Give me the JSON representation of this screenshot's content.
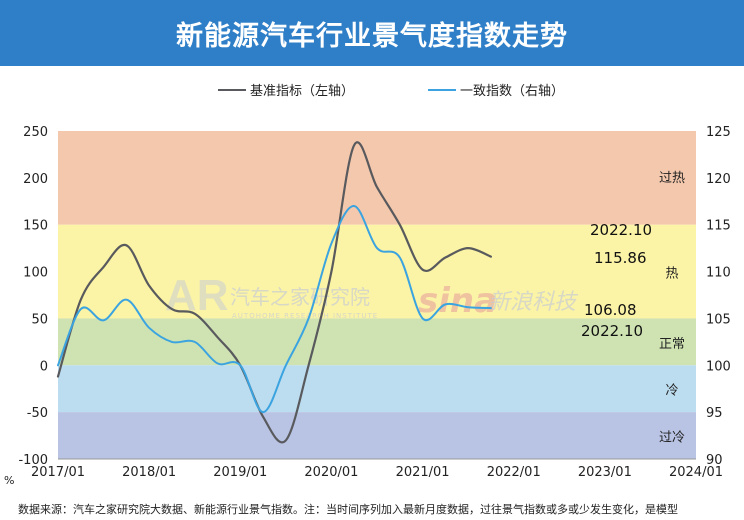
{
  "header": {
    "title": "新能源汽车行业景气度指数走势"
  },
  "footer": {
    "source": "数据来源：汽车之家研究院大数据、新能源行业景气指数。注：当时间序列加入最新月度数据，过往景气指数或多或少发生变化，是模型"
  },
  "watermarks": {
    "autohome_logo": "AR",
    "autohome_text": "汽车之家研究院",
    "autohome_sub": "AUTOHOME RESEARCH INSTITUTE",
    "sina_logo": "sina",
    "sina_text": "新浪科技"
  },
  "colors": {
    "benchmark": "#595a5e",
    "coincident": "#3ba4e0",
    "zone_overheat": "#f4c8ac",
    "zone_hot": "#fbf3a6",
    "zone_normal": "#cfe3b2",
    "zone_cold": "#bcdcef",
    "zone_supercold": "#b9c4e4"
  },
  "chart_data": {
    "type": "line",
    "x_ticks": [
      "2017/01",
      "2018/01",
      "2019/01",
      "2020/01",
      "2021/01",
      "2022/01",
      "2023/01",
      "2024/01"
    ],
    "x_unit_label": "%",
    "y_left": {
      "ylim": [
        -100,
        250
      ],
      "ticks": [
        -100,
        -50,
        0,
        50,
        100,
        150,
        200,
        250
      ]
    },
    "y_right": {
      "ylim": [
        90,
        125
      ],
      "ticks": [
        90,
        95,
        100,
        105,
        110,
        115,
        120,
        125
      ]
    },
    "legend": {
      "placement": "top-center"
    },
    "zones": [
      {
        "label": "过热",
        "from": 150,
        "to": 250,
        "color": "#f4c8ac"
      },
      {
        "label": "热",
        "from": 50,
        "to": 150,
        "color": "#fbf3a6"
      },
      {
        "label": "正常",
        "from": 0,
        "to": 50,
        "color": "#cfe3b2"
      },
      {
        "label": "冷",
        "from": -50,
        "to": 0,
        "color": "#bcdcef"
      },
      {
        "label": "过冷",
        "from": -100,
        "to": -50,
        "color": "#b9c4e4"
      }
    ],
    "series": [
      {
        "name": "基准指标（左轴）",
        "axis": "left",
        "x": [
          "2017-01",
          "2017-04",
          "2017-07",
          "2017-10",
          "2018-01",
          "2018-04",
          "2018-07",
          "2018-10",
          "2019-01",
          "2019-04",
          "2019-07",
          "2019-10",
          "2020-01",
          "2020-04",
          "2020-07",
          "2020-10",
          "2021-01",
          "2021-04",
          "2021-07",
          "2021-10",
          "2022-01",
          "2022-04",
          "2022-07",
          "2022-10"
        ],
        "values": [
          -12,
          70,
          105,
          128,
          85,
          60,
          55,
          30,
          0,
          -55,
          -80,
          0,
          100,
          235,
          190,
          150,
          102,
          115,
          125,
          116,
          116,
          116,
          116,
          116
        ]
      },
      {
        "name": "一致指数（右轴）",
        "axis": "right",
        "x": [
          "2017-01",
          "2017-04",
          "2017-07",
          "2017-10",
          "2018-01",
          "2018-04",
          "2018-07",
          "2018-10",
          "2019-01",
          "2019-04",
          "2019-07",
          "2019-10",
          "2020-01",
          "2020-04",
          "2020-07",
          "2020-10",
          "2021-01",
          "2021-04",
          "2021-07",
          "2021-10",
          "2022-01",
          "2022-04",
          "2022-07",
          "2022-10"
        ],
        "values": [
          100,
          106,
          104.8,
          107,
          104,
          102.5,
          102.5,
          100.2,
          100,
          95,
          100,
          105,
          113,
          117,
          112.5,
          111.5,
          105,
          106.5,
          106.2,
          106.1,
          106.08,
          106.08,
          106.08,
          106.08
        ]
      }
    ],
    "annotations": [
      {
        "date": "2022.10",
        "value": "115.86"
      },
      {
        "date": "2022.10",
        "value": "106.08"
      }
    ]
  }
}
